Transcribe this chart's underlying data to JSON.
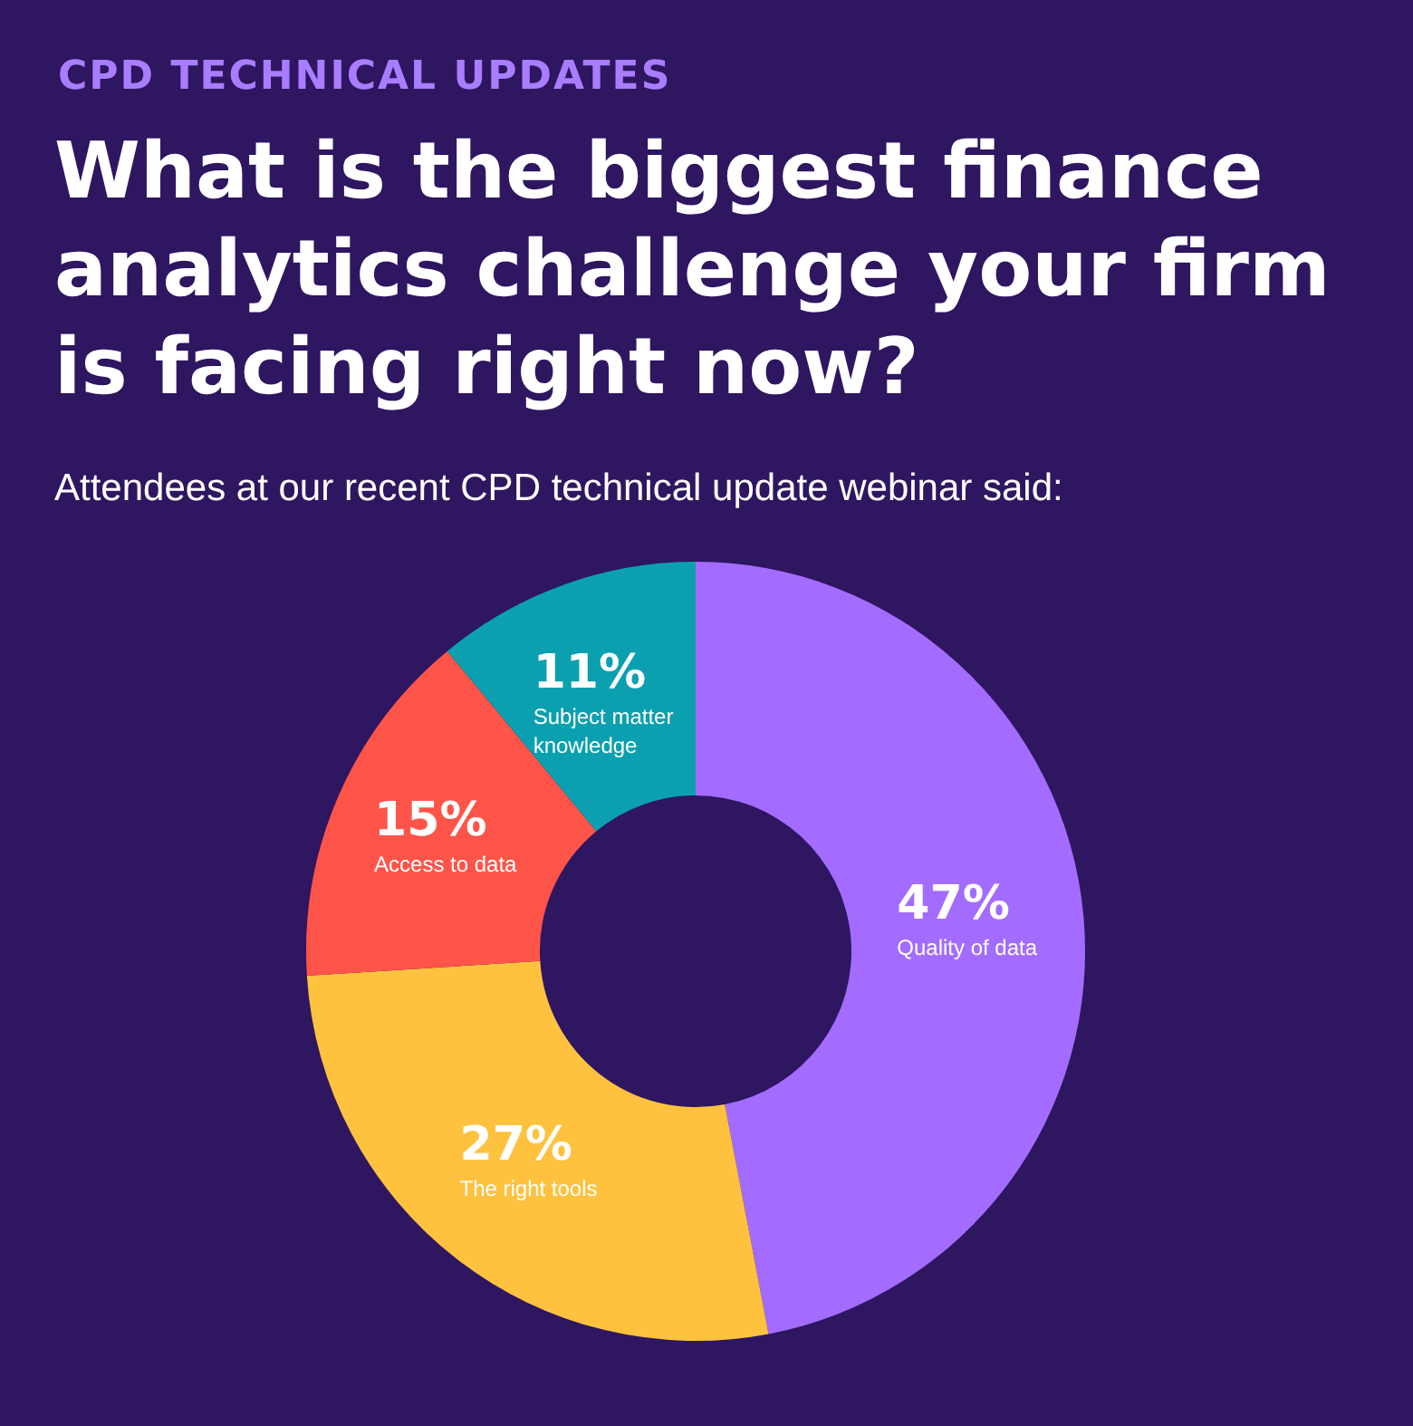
{
  "chart_data": {
    "type": "donut",
    "title": "What is the biggest finance analytics challenge your firm is facing right now?",
    "subtitle": "Attendees at our recent CPD technical update webinar said:",
    "annotations": [
      "CPD TECHNICAL UPDATES"
    ],
    "categories": [
      "Quality of data",
      "The right tools",
      "Access to data",
      "Subject matter knowledge"
    ],
    "values": [
      47,
      27,
      15,
      11
    ],
    "colors": [
      "#a36cff",
      "#ffc23f",
      "#ff5449",
      "#0aa0b0"
    ],
    "value_labels": [
      "47%",
      "27%",
      "15%",
      "11%"
    ],
    "legend": false
  }
}
